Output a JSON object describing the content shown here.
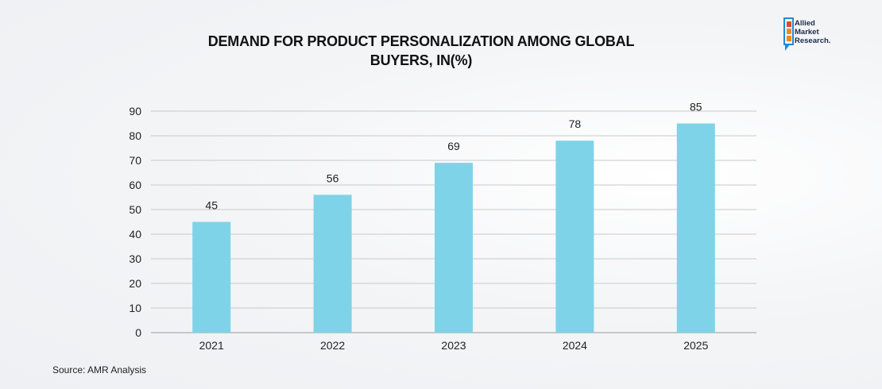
{
  "brand": {
    "logo_lines": [
      "Allied",
      "Market",
      "Research."
    ],
    "colors": {
      "blue": "#1f8bd6",
      "orange": "#f08a1c",
      "red": "#e04a2a",
      "navy": "#1b2b4a"
    }
  },
  "source": "Source: AMR Analysis",
  "chart_data": {
    "type": "bar",
    "title": "DEMAND FOR PRODUCT PERSONALIZATION AMONG GLOBAL BUYERS, IN(%)",
    "categories": [
      "2021",
      "2022",
      "2023",
      "2024",
      "2025"
    ],
    "values": [
      45,
      56,
      69,
      78,
      85
    ],
    "data_labels": [
      "45",
      "56",
      "69",
      "78",
      "85"
    ],
    "xlabel": "",
    "ylabel": "",
    "ylim": [
      0,
      90
    ],
    "yticks": [
      0,
      10,
      20,
      30,
      40,
      50,
      60,
      70,
      80,
      90
    ],
    "grid": true,
    "bar_color": "#7fd3e8",
    "legend": "none"
  }
}
